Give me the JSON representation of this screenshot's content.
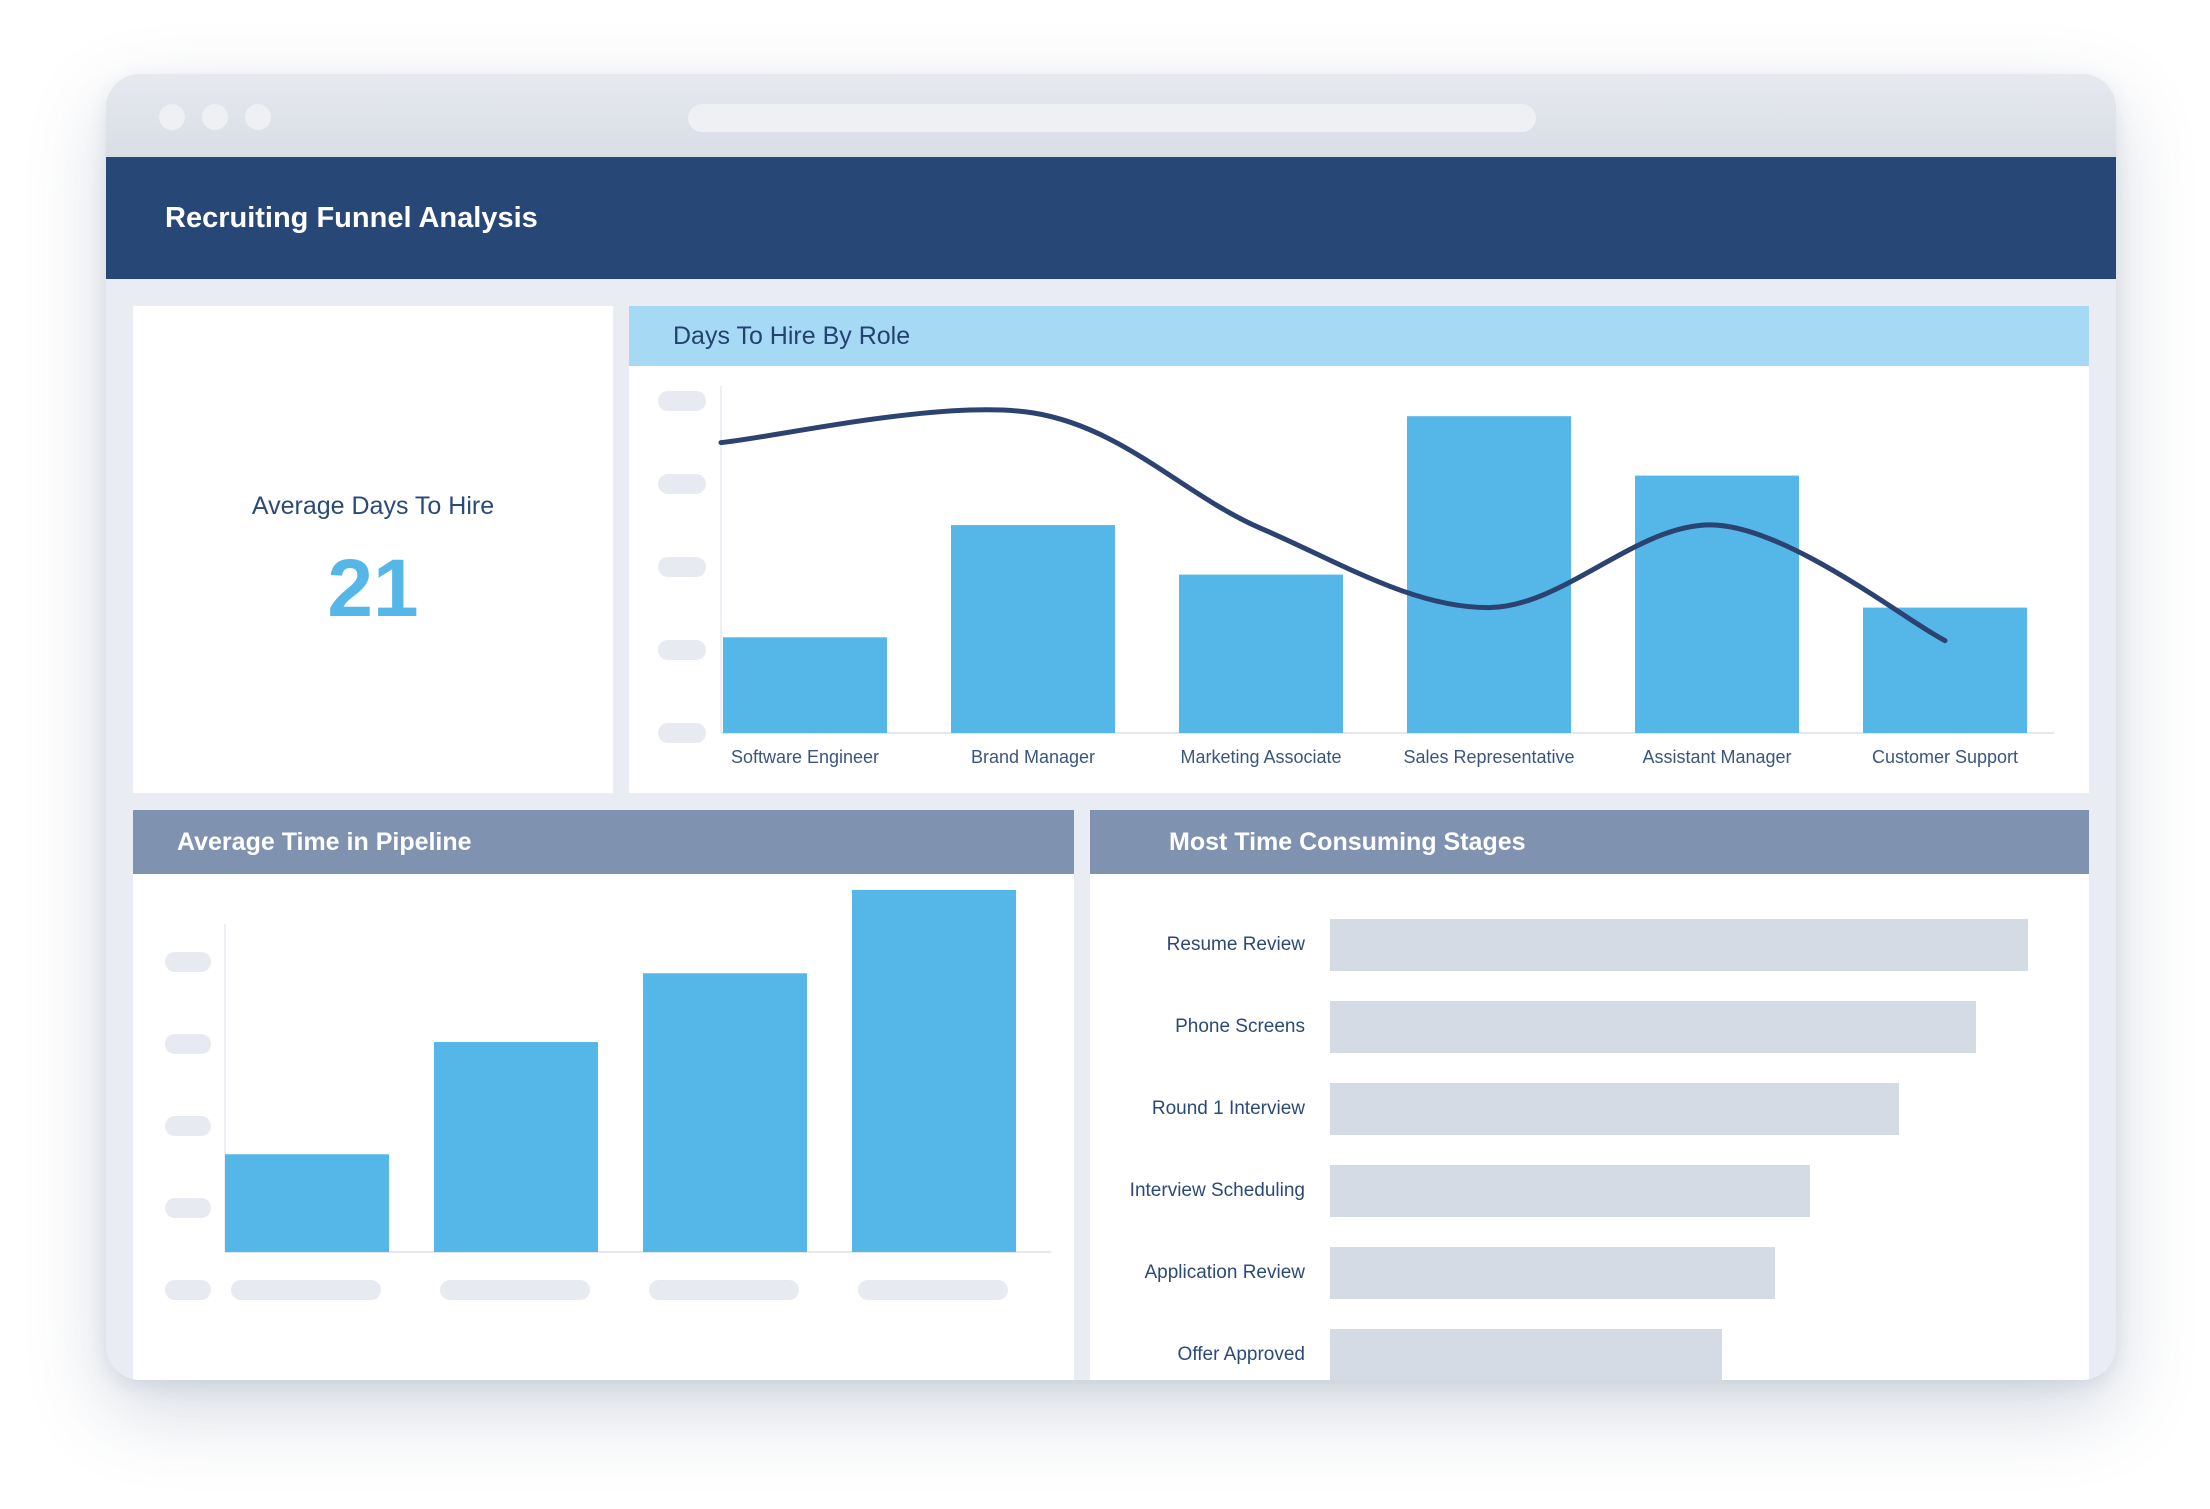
{
  "app": {
    "title": "Recruiting Funnel Analysis"
  },
  "colors": {
    "header_bg": "#274777",
    "bar_blue": "#55b6e8",
    "curve": "#2c4271",
    "light_header": "#a5d9f4",
    "gray_header": "#7f92b0",
    "hbar_gray": "#d5dbe5"
  },
  "kpi": {
    "label": "Average Days To Hire",
    "value": "21"
  },
  "days_to_hire": {
    "title": "Days To Hire By Role"
  },
  "pipeline": {
    "title": "Average Time in Pipeline"
  },
  "stages": {
    "title": "Most Time Consuming Stages",
    "items": [
      {
        "label": "Resume Review",
        "value": 1.0
      },
      {
        "label": "Phone Screens",
        "value": 0.925
      },
      {
        "label": "Round 1 Interview",
        "value": 0.815
      },
      {
        "label": "Interview Scheduling",
        "value": 0.688
      },
      {
        "label": "Application Review",
        "value": 0.637
      },
      {
        "label": "Offer Approved",
        "value": 0.562
      }
    ]
  },
  "chart_data": [
    {
      "type": "bar",
      "title": "Days To Hire By Role",
      "categories": [
        "Software Engineer",
        "Brand Manager",
        "Marketing Associate",
        "Sales Representative",
        "Assistant Manager",
        "Customer Support"
      ],
      "values": [
        0.29,
        0.63,
        0.48,
        0.96,
        0.78,
        0.38
      ],
      "line_values": [
        0.88,
        0.97,
        0.62,
        0.38,
        0.63,
        0.28
      ],
      "grid": false,
      "yticks_labeled": false
    },
    {
      "type": "bar",
      "title": "Average Time in Pipeline",
      "categories": [
        "",
        "",
        "",
        ""
      ],
      "values": [
        0.27,
        0.58,
        0.77,
        1.0
      ],
      "grid": false,
      "yticks_labeled": false
    },
    {
      "type": "bar",
      "orientation": "horizontal",
      "title": "Most Time Consuming Stages",
      "categories": [
        "Resume Review",
        "Phone Screens",
        "Round 1 Interview",
        "Interview Scheduling",
        "Application Review",
        "Offer Approved"
      ],
      "values": [
        1.0,
        0.925,
        0.815,
        0.688,
        0.637,
        0.562
      ],
      "grid": false
    }
  ]
}
